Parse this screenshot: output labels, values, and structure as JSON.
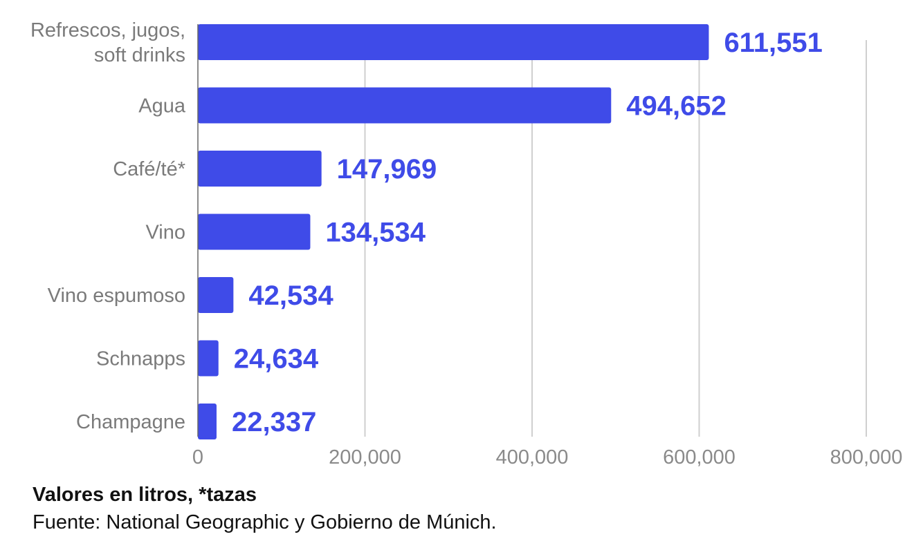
{
  "chart_data": {
    "type": "bar",
    "orientation": "horizontal",
    "categories": [
      [
        "Refrescos, jugos,",
        "soft drinks"
      ],
      [
        "Agua"
      ],
      [
        "Café/té*"
      ],
      [
        "Vino"
      ],
      [
        "Vino espumoso"
      ],
      [
        "Schnapps"
      ],
      [
        "Champagne"
      ]
    ],
    "values": [
      611551,
      494652,
      147969,
      134534,
      42534,
      24634,
      22337
    ],
    "value_labels": [
      "611,551",
      "494,652",
      "147,969",
      "134,534",
      "42,534",
      "24,634",
      "22,337"
    ],
    "xlim": [
      0,
      800000
    ],
    "x_ticks": [
      0,
      200000,
      400000,
      600000,
      800000
    ],
    "x_tick_labels": [
      "0",
      "200,000",
      "400,000",
      "600,000",
      "800,000"
    ],
    "grid": "vertical",
    "bar_color": "#3f4be8",
    "label_color": "#3f4be8"
  },
  "footer": {
    "note": "Valores en litros, *tazas",
    "source": "Fuente: National Geographic y Gobierno de Múnich."
  }
}
